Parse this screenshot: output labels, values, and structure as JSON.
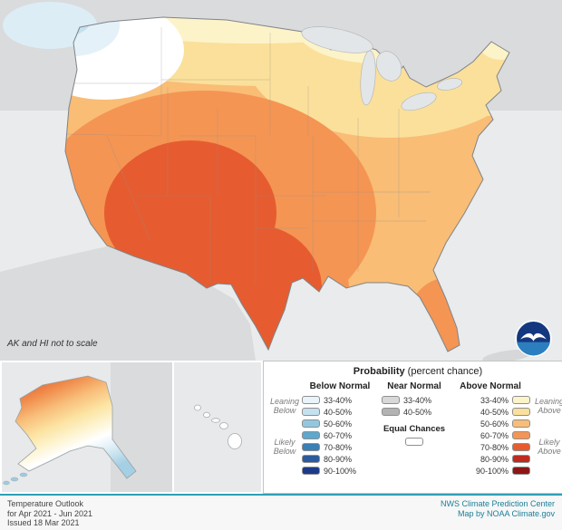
{
  "map": {
    "inset_note": "AK and HI not to scale"
  },
  "legend": {
    "title": "Probability",
    "title_suffix": " (percent chance)",
    "below": {
      "header": "Below Normal",
      "leaning_label": "Leaning Below",
      "likely_label": "Likely Below",
      "rows": [
        "33-40%",
        "40-50%",
        "50-60%",
        "60-70%",
        "70-80%",
        "80-90%",
        "90-100%"
      ],
      "colors": [
        "#e8f3fa",
        "#c5e1f0",
        "#93c7e0",
        "#5ea7cd",
        "#3a7fb5",
        "#2b5a9e",
        "#1c3a8a"
      ]
    },
    "near": {
      "header": "Near Normal",
      "rows": [
        "33-40%",
        "40-50%"
      ],
      "colors": [
        "#d8d8d8",
        "#b3b3b3"
      ],
      "equal_label": "Equal Chances",
      "equal_color": "#ffffff"
    },
    "above": {
      "header": "Above Normal",
      "leaning_label": "Leaning Above",
      "likely_label": "Likely Above",
      "rows": [
        "33-40%",
        "40-50%",
        "50-60%",
        "60-70%",
        "70-80%",
        "80-90%",
        "90-100%"
      ],
      "colors": [
        "#fdf3c8",
        "#fbe09b",
        "#f9bd76",
        "#f59553",
        "#e65c30",
        "#bf2b1f",
        "#8e1515"
      ]
    }
  },
  "footer": {
    "left_lines": [
      "Temperature Outlook",
      "for Apr 2021 - Jun 2021",
      "Issued 18 Mar 2021"
    ],
    "right_lines": [
      "NWS Climate Prediction Center",
      "Map by NOAA Climate.gov"
    ]
  },
  "logo": {
    "label": "NOAA"
  }
}
